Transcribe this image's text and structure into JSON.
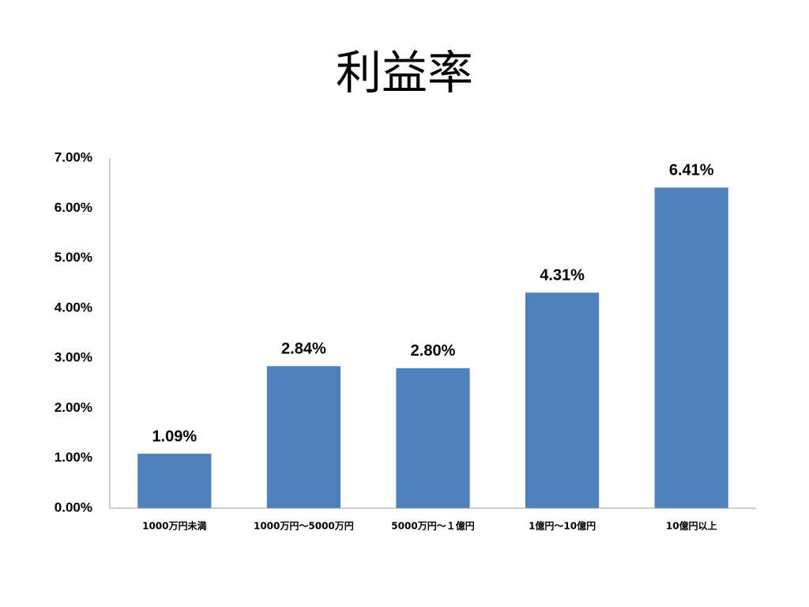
{
  "chart_data": {
    "type": "bar",
    "title": "利益率",
    "categories": [
      "1000万円未満",
      "1000万円～5000万円",
      "5000万円～１億円",
      "1億円～10億円",
      "10億円以上"
    ],
    "values": [
      1.09,
      2.84,
      2.8,
      4.31,
      6.41
    ],
    "value_labels": [
      "1.09%",
      "2.84%",
      "2.80%",
      "4.31%",
      "6.41%"
    ],
    "color": "#4f81bd",
    "ylim": [
      0,
      7
    ],
    "yticks": [
      {
        "value": 0,
        "label": "0.00%"
      },
      {
        "value": 1,
        "label": "1.00%"
      },
      {
        "value": 2,
        "label": "2.00%"
      },
      {
        "value": 3,
        "label": "3.00%"
      },
      {
        "value": 4,
        "label": "4.00%"
      },
      {
        "value": 5,
        "label": "5.00%"
      },
      {
        "value": 6,
        "label": "6.00%"
      },
      {
        "value": 7,
        "label": "7.00%"
      }
    ],
    "grid": false
  }
}
